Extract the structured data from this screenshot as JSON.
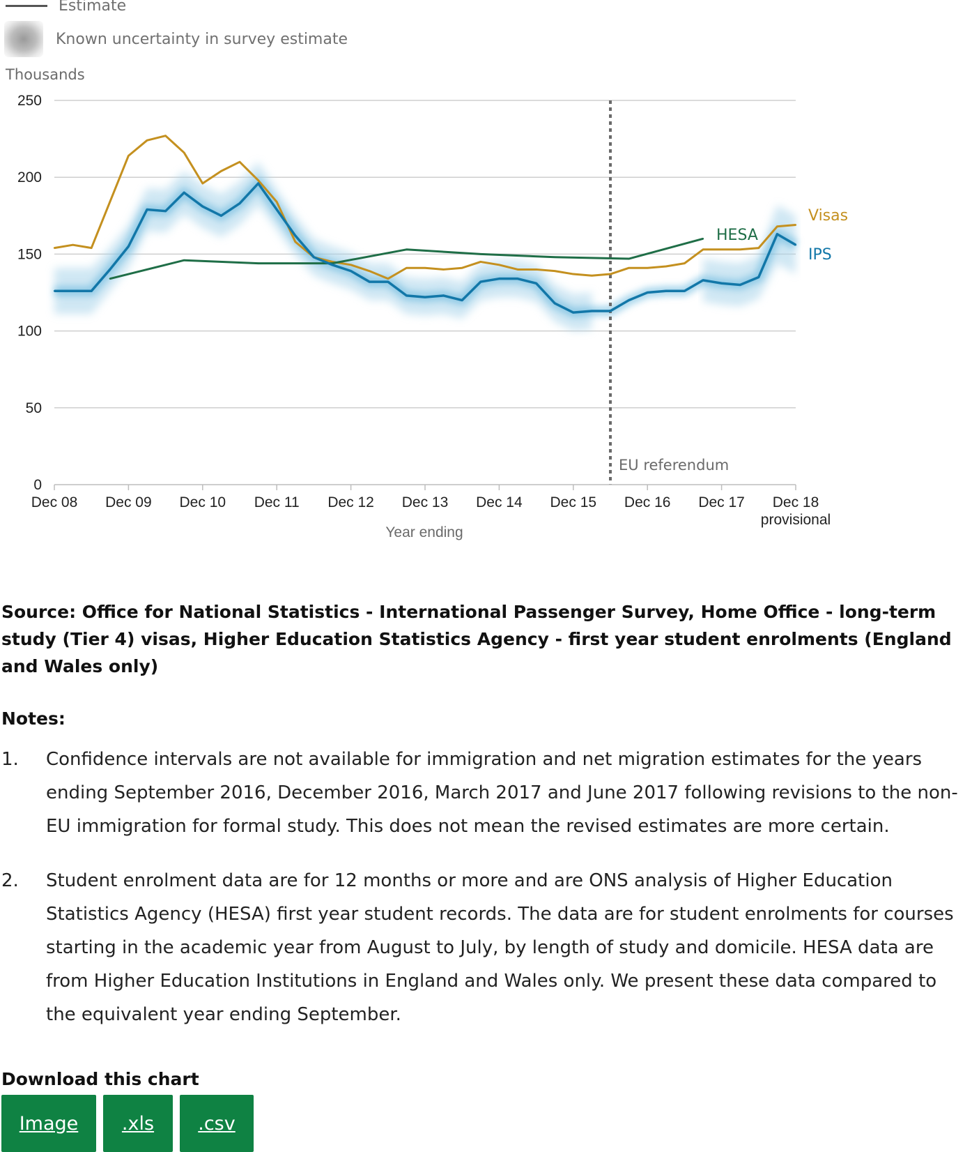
{
  "legend": {
    "estimate_label": "Estimate",
    "uncertainty_label": "Known uncertainty in survey estimate"
  },
  "chart_data": {
    "type": "line",
    "ylabel": "Thousands",
    "xlabel": "Year ending",
    "ylim": [
      0,
      250
    ],
    "y_ticks": [
      0,
      50,
      100,
      150,
      200,
      250
    ],
    "x_tick_labels": [
      "Dec 08",
      "Dec 09",
      "Dec 10",
      "Dec 11",
      "Dec 12",
      "Dec 13",
      "Dec 14",
      "Dec 15",
      "Dec 16",
      "Dec 17",
      "Dec 18\nprovisional"
    ],
    "grid": true,
    "annotation": {
      "label": "EU referendum",
      "x": 7.5
    },
    "colors": {
      "visas": "#c4901f",
      "hesa": "#1f6e47",
      "ips": "#1277a8",
      "band": "#a9d4ea"
    },
    "series": [
      {
        "name": "Visas",
        "x": [
          0,
          0.25,
          0.5,
          0.75,
          1,
          1.25,
          1.5,
          1.75,
          2,
          2.25,
          2.5,
          2.75,
          3,
          3.25,
          3.5,
          3.75,
          4,
          4.25,
          4.5,
          4.75,
          5,
          5.25,
          5.5,
          5.75,
          6,
          6.25,
          6.5,
          6.75,
          7,
          7.25,
          7.5,
          7.75,
          8,
          8.25,
          8.5,
          8.75,
          9,
          9.25,
          9.5,
          9.75,
          10
        ],
        "values": [
          154,
          156,
          154,
          184,
          214,
          224,
          227,
          216,
          196,
          204,
          210,
          198,
          184,
          158,
          148,
          145,
          143,
          139,
          134,
          141,
          141,
          140,
          141,
          145,
          143,
          140,
          140,
          139,
          137,
          136,
          137,
          141,
          141,
          142,
          144,
          153,
          153,
          153,
          154,
          168,
          169
        ]
      },
      {
        "name": "HESA",
        "x": [
          0.75,
          1.75,
          2.75,
          3.75,
          4.75,
          5.75,
          6.75,
          7.75,
          8.75
        ],
        "values": [
          134,
          146,
          144,
          144,
          153,
          150,
          148,
          147,
          160
        ]
      },
      {
        "name": "IPS",
        "x": [
          0,
          0.25,
          0.5,
          0.75,
          1,
          1.25,
          1.5,
          1.75,
          2,
          2.25,
          2.5,
          2.75,
          3,
          3.25,
          3.5,
          3.75,
          4,
          4.25,
          4.5,
          4.75,
          5,
          5.25,
          5.5,
          5.75,
          6,
          6.25,
          6.5,
          6.75,
          7,
          7.25,
          7.5,
          7.75,
          8,
          8.25,
          8.5,
          8.75,
          9,
          9.25,
          9.5,
          9.75,
          10
        ],
        "values": [
          126,
          126,
          126,
          140,
          155,
          179,
          178,
          190,
          181,
          175,
          183,
          196,
          179,
          162,
          148,
          143,
          139,
          132,
          132,
          123,
          122,
          123,
          120,
          132,
          134,
          134,
          131,
          118,
          112,
          113,
          113,
          120,
          125,
          126,
          126,
          133,
          131,
          130,
          135,
          163,
          156
        ],
        "uncertainty": [
          15,
          15,
          15,
          14,
          14,
          14,
          14,
          14,
          14,
          14,
          14,
          14,
          13,
          13,
          12,
          12,
          12,
          12,
          12,
          12,
          12,
          12,
          12,
          12,
          12,
          12,
          12,
          12,
          12,
          12,
          0,
          0,
          0,
          0,
          0,
          14,
          14,
          14,
          14,
          19,
          19
        ]
      }
    ]
  },
  "source": "Source: Office for National Statistics - International Passenger Survey, Home Office - long-term study (Tier 4) visas, Higher Education Statistics Agency - first year student enrolments (England and Wales only)",
  "notes": {
    "title": "Notes:",
    "items": [
      {
        "num": "1.",
        "text": "Confidence intervals are not available for immigration and net migration estimates for the years ending September 2016, December 2016, March 2017 and June 2017 following revisions to the non-EU immigration for formal study. This does not mean the revised estimates are more certain."
      },
      {
        "num": "2.",
        "text": "Student enrolment data are for 12 months or more and are ONS analysis of Higher Education Statistics Agency (HESA) first year student records. The data are for student enrolments for courses starting in the academic year from August to July, by length of study and domicile. HESA data are from Higher Education Institutions in England and Wales only. We present these data compared to the equivalent year ending September."
      }
    ]
  },
  "download": {
    "title": "Download this chart",
    "buttons": [
      "Image",
      ".xls",
      ".csv"
    ]
  }
}
